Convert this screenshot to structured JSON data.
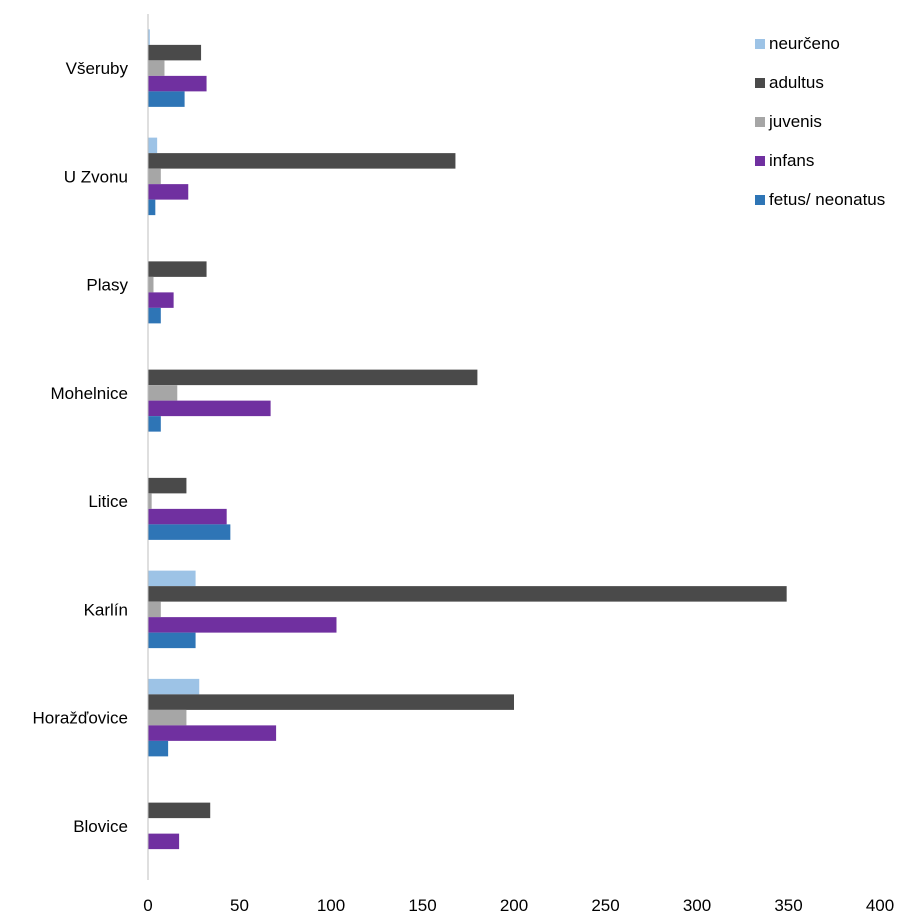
{
  "chart_data": {
    "type": "bar",
    "orientation": "horizontal",
    "categories": [
      "Všeruby",
      "U Zvonu",
      "Plasy",
      "Mohelnice",
      "Litice",
      "Karlín",
      "Horažďovice",
      "Blovice"
    ],
    "series": [
      {
        "name": "neurčeno",
        "color": "#9DC3E6",
        "values": [
          1,
          5,
          0,
          0,
          0,
          26,
          28,
          0
        ]
      },
      {
        "name": "adultus",
        "color": "#4A4A4A",
        "values": [
          29,
          168,
          32,
          180,
          21,
          349,
          200,
          34
        ]
      },
      {
        "name": "juvenis",
        "color": "#A6A6A6",
        "values": [
          9,
          7,
          3,
          16,
          2,
          7,
          21,
          0
        ]
      },
      {
        "name": "infans",
        "color": "#7030A0",
        "values": [
          32,
          22,
          14,
          67,
          43,
          103,
          70,
          17
        ]
      },
      {
        "name": "fetus/ neonatus",
        "color": "#2E75B6",
        "values": [
          20,
          4,
          7,
          7,
          45,
          26,
          11,
          0
        ]
      }
    ],
    "xlim": [
      0,
      400
    ],
    "xticks": [
      "0",
      "50",
      "100",
      "150",
      "200",
      "250",
      "300",
      "350",
      "400"
    ],
    "title": "",
    "xlabel": "",
    "ylabel": "",
    "grid": false,
    "legend_position": "top-right"
  }
}
